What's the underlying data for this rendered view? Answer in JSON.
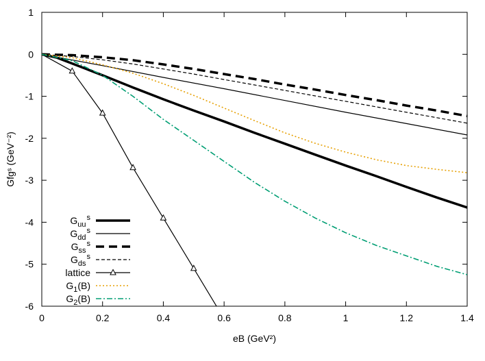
{
  "chart_data": {
    "type": "line",
    "title": "",
    "xlabel": "eB (GeV²)",
    "ylabel": "Gfgˢ (GeV⁻²)",
    "xlim": [
      0,
      1.4
    ],
    "ylim": [
      -6,
      1
    ],
    "xticks": [
      0,
      0.2,
      0.4,
      0.6,
      0.8,
      1,
      1.2,
      1.4
    ],
    "xtick_labels": [
      "0",
      "0.2",
      "0.4",
      "0.6",
      "0.8",
      "1",
      "1.2",
      "1.4"
    ],
    "yticks": [
      1,
      0,
      -1,
      -2,
      -3,
      -4,
      -5,
      -6
    ],
    "ytick_labels": [
      "1",
      "0",
      "-1",
      "-2",
      "-3",
      "-4",
      "-5",
      "-6"
    ],
    "grid": false,
    "legend_position": "bottom-left",
    "series": [
      {
        "name": "G_uu^s",
        "color": "#000000",
        "width": 3.5,
        "dash": "solid",
        "marker": "none",
        "x": [
          0,
          0.05,
          0.1,
          0.15,
          0.2,
          0.3,
          0.4,
          0.5,
          0.6,
          0.7,
          0.8,
          0.9,
          1.0,
          1.1,
          1.2,
          1.3,
          1.4
        ],
        "y": [
          0,
          -0.08,
          -0.22,
          -0.36,
          -0.5,
          -0.79,
          -1.07,
          -1.34,
          -1.6,
          -1.87,
          -2.13,
          -2.39,
          -2.65,
          -2.9,
          -3.16,
          -3.41,
          -3.65
        ]
      },
      {
        "name": "G_dd^s",
        "color": "#000000",
        "width": 1.2,
        "dash": "solid",
        "marker": "none",
        "x": [
          0,
          0.2,
          0.4,
          0.6,
          0.8,
          1.0,
          1.2,
          1.4
        ],
        "y": [
          0,
          -0.27,
          -0.55,
          -0.82,
          -1.1,
          -1.38,
          -1.65,
          -1.92
        ]
      },
      {
        "name": "G_ss^s",
        "color": "#000000",
        "width": 3.5,
        "dash": "12,7",
        "marker": "none",
        "x": [
          0,
          0.1,
          0.2,
          0.3,
          0.4,
          0.5,
          0.6,
          0.7,
          0.8,
          0.9,
          1.0,
          1.1,
          1.2,
          1.3,
          1.4
        ],
        "y": [
          0,
          -0.02,
          -0.07,
          -0.14,
          -0.24,
          -0.35,
          -0.47,
          -0.59,
          -0.72,
          -0.84,
          -0.97,
          -1.09,
          -1.22,
          -1.34,
          -1.47
        ]
      },
      {
        "name": "G_ds^s",
        "color": "#000000",
        "width": 1.2,
        "dash": "5,3",
        "marker": "none",
        "x": [
          0,
          0.1,
          0.2,
          0.3,
          0.4,
          0.5,
          0.6,
          0.7,
          0.8,
          0.9,
          1.0,
          1.1,
          1.2,
          1.3,
          1.4
        ],
        "y": [
          0,
          -0.05,
          -0.13,
          -0.23,
          -0.35,
          -0.47,
          -0.6,
          -0.73,
          -0.86,
          -0.99,
          -1.12,
          -1.25,
          -1.38,
          -1.51,
          -1.64
        ]
      },
      {
        "name": "lattice",
        "color": "#000000",
        "width": 1.2,
        "dash": "solid",
        "marker": "triangle",
        "x": [
          0,
          0.1,
          0.2,
          0.3,
          0.4,
          0.5,
          0.6
        ],
        "y": [
          0,
          -0.4,
          -1.4,
          -2.7,
          -3.9,
          -5.1,
          -6.3
        ]
      },
      {
        "name": "G_1(B)",
        "color": "#e69f00",
        "width": 1.6,
        "dash": "2,3",
        "marker": "none",
        "x": [
          0,
          0.1,
          0.2,
          0.3,
          0.4,
          0.5,
          0.6,
          0.7,
          0.8,
          0.9,
          1.0,
          1.1,
          1.2,
          1.3,
          1.4
        ],
        "y": [
          0,
          -0.08,
          -0.25,
          -0.45,
          -0.7,
          -0.98,
          -1.28,
          -1.58,
          -1.87,
          -2.12,
          -2.33,
          -2.51,
          -2.65,
          -2.74,
          -2.82
        ]
      },
      {
        "name": "G_2(B)",
        "color": "#009e73",
        "width": 1.6,
        "dash": "8,3,2,3",
        "marker": "none",
        "x": [
          0,
          0.1,
          0.2,
          0.3,
          0.4,
          0.5,
          0.6,
          0.7,
          0.8,
          0.9,
          1.0,
          1.1,
          1.2,
          1.3,
          1.4
        ],
        "y": [
          0,
          -0.15,
          -0.5,
          -1.0,
          -1.55,
          -2.05,
          -2.55,
          -3.05,
          -3.5,
          -3.9,
          -4.25,
          -4.55,
          -4.8,
          -5.05,
          -5.25
        ]
      }
    ]
  }
}
